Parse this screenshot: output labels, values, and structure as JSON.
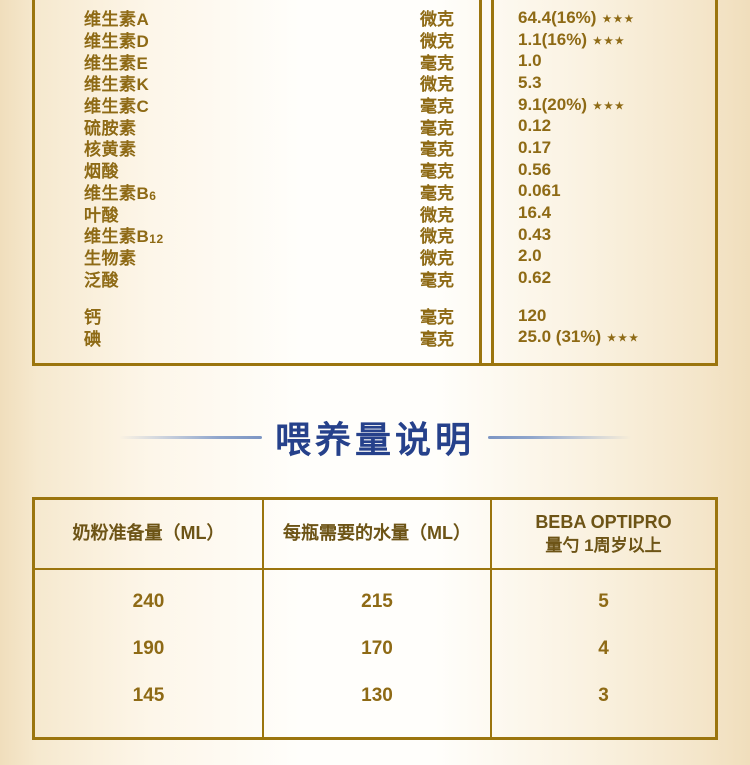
{
  "palette": {
    "gold_border": "#9b750e",
    "gold_text": "#8e6a15",
    "feeding_header_text": "#6d5416",
    "title_navy": "#26418b",
    "title_line_blue": "#8fa5cc",
    "background_cream": "#f4e5c9"
  },
  "nutrition": {
    "stars_glyph": "★★★",
    "rows": [
      {
        "name": "维生素A",
        "unit": "微克",
        "value": "64.4(16%)",
        "stars": true
      },
      {
        "name": "维生素D",
        "unit": "微克",
        "value": "1.1(16%)",
        "stars": true
      },
      {
        "name": "维生素E",
        "unit": "毫克",
        "value": "1.0"
      },
      {
        "name": "维生素K",
        "unit": "微克",
        "value": "5.3"
      },
      {
        "name": "维生素C",
        "unit": "毫克",
        "value": "9.1(20%)",
        "stars": true
      },
      {
        "name": "硫胺素",
        "unit": "毫克",
        "value": "0.12"
      },
      {
        "name": "核黄素",
        "unit": "毫克",
        "value": "0.17"
      },
      {
        "name": "烟酸",
        "unit": "毫克",
        "value": "0.56"
      },
      {
        "name": "维生素B",
        "sub": "6",
        "unit": "毫克",
        "value": "0.061"
      },
      {
        "name": "叶酸",
        "unit": "微克",
        "value": "16.4"
      },
      {
        "name": "维生素B",
        "sub": "12",
        "unit": "微克",
        "value": "0.43"
      },
      {
        "name": "生物素",
        "unit": "微克",
        "value": "2.0"
      },
      {
        "name": "泛酸",
        "unit": "毫克",
        "value": "0.62"
      },
      {
        "spacer": true
      },
      {
        "name": "钙",
        "unit": "毫克",
        "value": "120"
      },
      {
        "name": "碘",
        "unit": "毫克",
        "value": "25.0 (31%)",
        "stars": true
      }
    ]
  },
  "section_title": {
    "text": "喂养量说明"
  },
  "feeding": {
    "headers": [
      {
        "lines": [
          "奶粉准备量（ML）"
        ]
      },
      {
        "lines": [
          "每瓶需要的水量（ML）"
        ]
      },
      {
        "lines": [
          "BEBA OPTIPRO",
          "量勺 1周岁以上"
        ]
      }
    ],
    "rows": [
      [
        "240",
        "215",
        "5"
      ],
      [
        "190",
        "170",
        "4"
      ],
      [
        "145",
        "130",
        "3"
      ]
    ]
  }
}
